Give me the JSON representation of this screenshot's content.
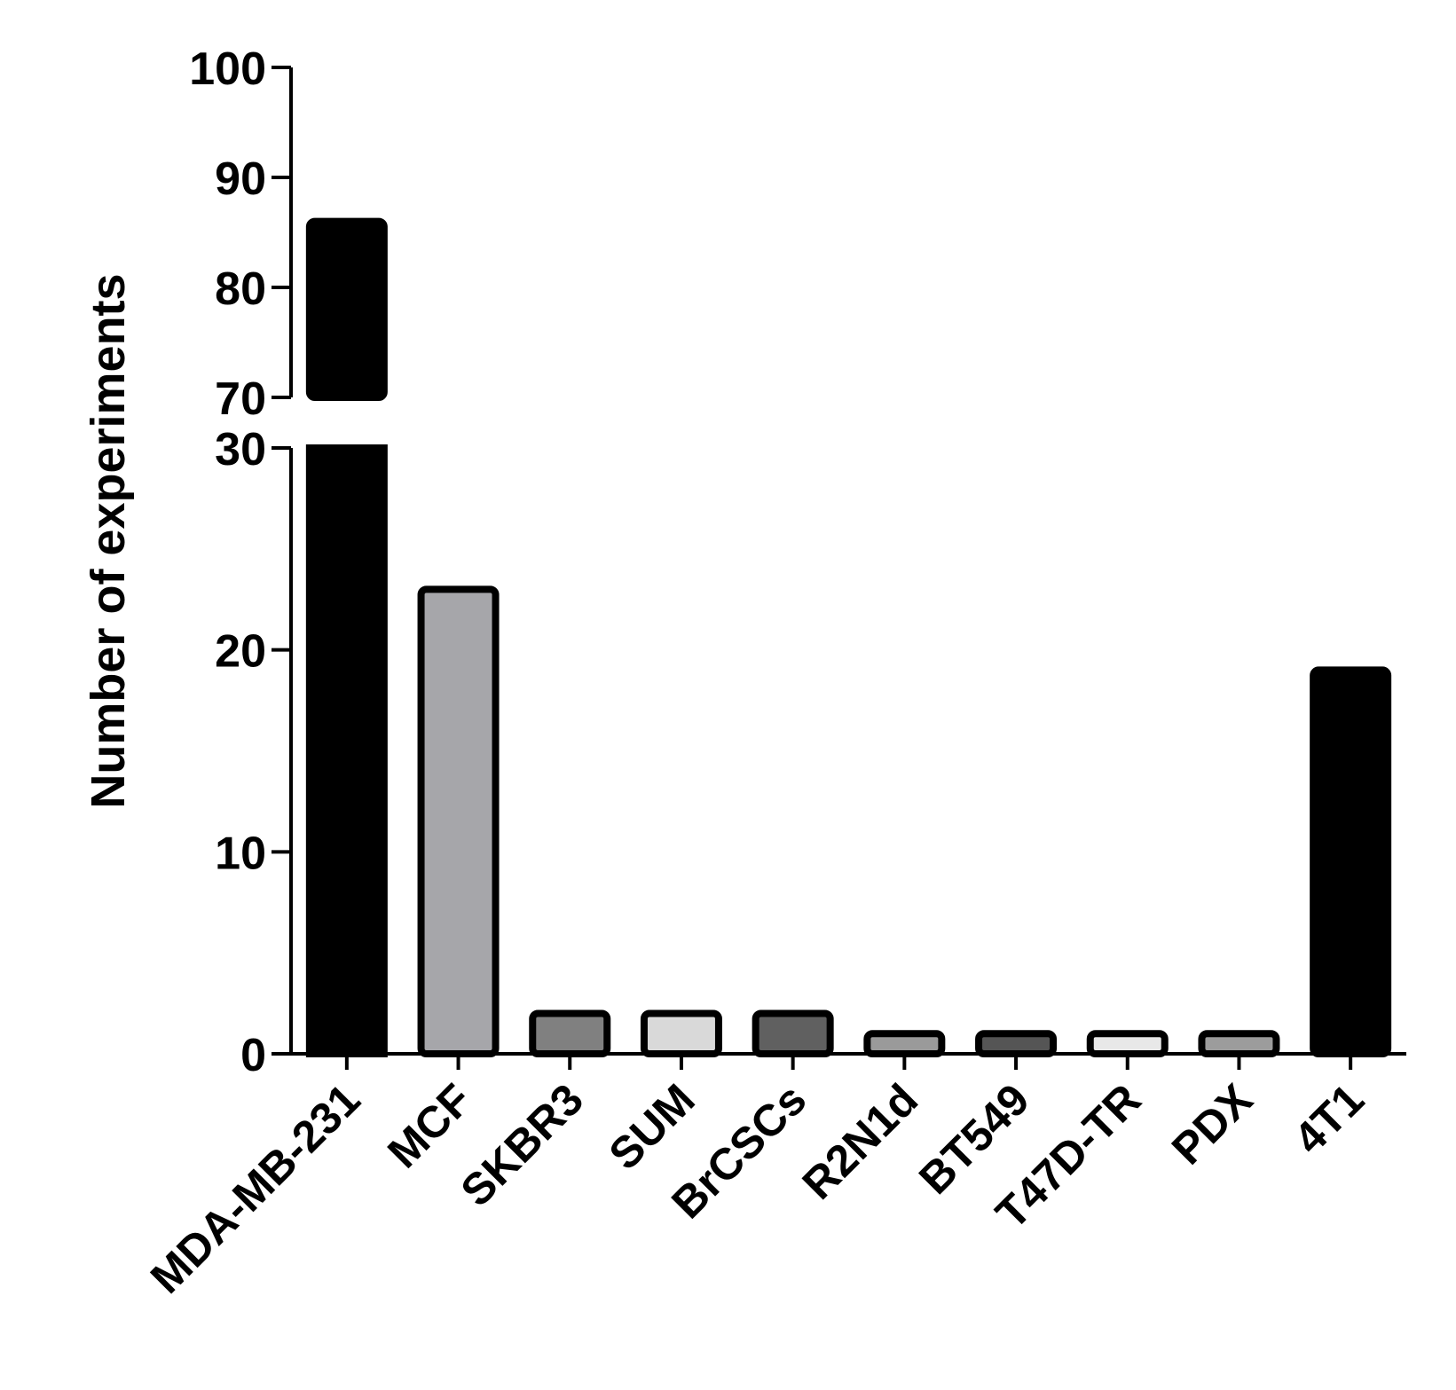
{
  "chart_data": {
    "type": "bar",
    "y_label": "Number of experiments",
    "categories": [
      "MDA-MB-231",
      "MCF",
      "SKBR3",
      "SUM",
      "BrCSCs",
      "R2N1d",
      "BT549",
      "T47D-TR",
      "PDX",
      "4T1"
    ],
    "values": [
      86,
      23,
      2,
      2,
      2,
      1,
      1,
      1,
      1,
      19
    ],
    "colors": [
      "#000000",
      "#a6a6aa",
      "#808080",
      "#d9d9d9",
      "#606060",
      "#9a9a9a",
      "#555555",
      "#e8e8e8",
      "#9c9c9c",
      "#000000"
    ],
    "ylim": [
      0,
      100
    ],
    "y_break": [
      30,
      70
    ],
    "yticks": [
      0,
      10,
      20,
      30,
      70,
      80,
      90,
      100
    ]
  }
}
